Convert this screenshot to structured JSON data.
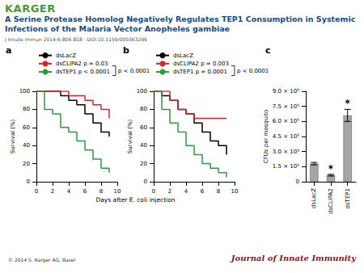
{
  "header": {
    "logo": "KARGER",
    "title": "A Serine Protease Homolog Negatively Regulates TEP1 Consumption in Systemic Infections of the Malaria Vector Anopheles gambiae",
    "citation": "J Innate Immun 2014;6:806-818 · DOI:10.1159/000363296"
  },
  "figure": {
    "xlabel": "Days after E. coli injection"
  },
  "footer": {
    "copyright": "© 2014 S. Karger AG, Basel",
    "journal": "Journal of Innate Immunity"
  },
  "chart_data": [
    {
      "type": "line",
      "label": "a",
      "ylabel": "Survival (%)",
      "line_style": "step",
      "legend": "top left",
      "annotation": "p < 0.0001",
      "x": [
        0,
        1,
        2,
        3,
        4,
        5,
        6,
        7,
        8,
        9
      ],
      "series": [
        {
          "name": "dsLacZ",
          "color": "#000000",
          "values": [
            100,
            100,
            100,
            95,
            90,
            85,
            75,
            65,
            55,
            50
          ]
        },
        {
          "name": "dsCLIPA2 p = 0.03",
          "color": "#d7262b",
          "values": [
            100,
            100,
            100,
            100,
            95,
            95,
            90,
            85,
            80,
            70
          ]
        },
        {
          "name": "dsTEP1 p < 0.0001",
          "color": "#2e9a3a",
          "values": [
            100,
            80,
            75,
            60,
            55,
            45,
            35,
            25,
            15,
            10
          ]
        }
      ],
      "xlim": [
        0,
        10
      ],
      "xticks": [
        0,
        2,
        4,
        6,
        8,
        10
      ],
      "ylim": [
        0,
        100
      ],
      "yticks": [
        0,
        20,
        40,
        60,
        80,
        100
      ]
    },
    {
      "type": "line",
      "label": "b",
      "ylabel": "Survival (%)",
      "line_style": "step",
      "legend": "top left",
      "annotation": "p < 0.0001",
      "x": [
        0,
        1,
        2,
        3,
        4,
        5,
        6,
        7,
        8,
        9
      ],
      "series": [
        {
          "name": "dsLacZ",
          "color": "#000000",
          "values": [
            100,
            95,
            90,
            80,
            75,
            65,
            55,
            45,
            40,
            30
          ]
        },
        {
          "name": "dsCLIPA2 p = 0.003",
          "color": "#d7262b",
          "values": [
            100,
            100,
            90,
            80,
            75,
            70,
            70,
            70,
            70,
            70
          ]
        },
        {
          "name": "dsTEP1 p = 0.0001",
          "color": "#2e9a3a",
          "values": [
            100,
            80,
            65,
            55,
            40,
            30,
            20,
            15,
            10,
            5
          ]
        }
      ],
      "xlim": [
        0,
        10
      ],
      "xticks": [
        0,
        2,
        4,
        6,
        8,
        10
      ],
      "ylim": [
        0,
        100
      ],
      "yticks": [
        0,
        20,
        40,
        60,
        80,
        100
      ]
    },
    {
      "type": "bar",
      "label": "c",
      "ylabel": "CFUs per mosquito",
      "categories": [
        "dsLacZ",
        "dsCLIPA2",
        "dsTEP1"
      ],
      "values": [
        180000,
        65000,
        660000
      ],
      "errors": [
        12000,
        8000,
        60000
      ],
      "annotations": [
        null,
        "*",
        "*"
      ],
      "color": "#a6a6a6",
      "ylim": [
        0,
        900000
      ],
      "yticks": [
        0,
        {
          "value": 150000,
          "label": "1.5 × 10⁵"
        },
        {
          "value": 300000,
          "label": "3.0 × 10⁵"
        },
        {
          "value": 450000,
          "label": "4.5 × 10⁵"
        },
        {
          "value": 600000,
          "label": "6.0 × 10⁵"
        },
        {
          "value": 750000,
          "label": "7.5 × 10⁵"
        },
        {
          "value": 900000,
          "label": "9.0 × 10⁵"
        }
      ]
    }
  ]
}
